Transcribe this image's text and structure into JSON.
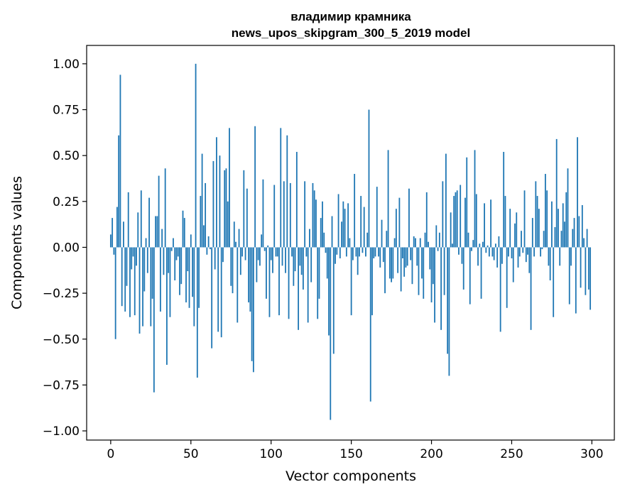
{
  "chart_data": {
    "type": "bar",
    "title_line1": "владимир крамника",
    "title_line2": "news_upos_skipgram_300_5_2019 model",
    "xlabel": "Vector components",
    "ylabel": "Components values",
    "xlim": [
      -15,
      314
    ],
    "ylim": [
      -1.05,
      1.1
    ],
    "xticks": [
      0,
      50,
      100,
      150,
      200,
      250,
      300
    ],
    "yticks": [
      1.0,
      0.75,
      0.5,
      0.25,
      0.0,
      -0.25,
      -0.5,
      -0.75,
      -1.0
    ],
    "ytick_labels": [
      "1.00",
      "0.75",
      "0.50",
      "0.25",
      "0.00",
      "−0.25",
      "−0.50",
      "−0.75",
      "−1.00"
    ],
    "grid": false,
    "color": "#1f77b4",
    "values": [
      0.07,
      0.16,
      -0.04,
      -0.5,
      0.22,
      0.61,
      0.94,
      -0.32,
      0.14,
      -0.35,
      -0.21,
      0.3,
      -0.38,
      -0.12,
      -0.05,
      -0.37,
      -0.1,
      0.19,
      -0.47,
      0.31,
      -0.43,
      -0.24,
      0.05,
      -0.14,
      0.27,
      -0.43,
      -0.28,
      -0.79,
      0.17,
      0.17,
      0.39,
      -0.35,
      0.1,
      -0.15,
      0.43,
      -0.64,
      -0.14,
      -0.38,
      -0.02,
      0.05,
      -0.18,
      -0.07,
      -0.05,
      -0.26,
      -0.2,
      0.2,
      0.16,
      -0.3,
      -0.13,
      -0.33,
      0.07,
      -0.27,
      -0.43,
      1.0,
      -0.71,
      -0.33,
      0.28,
      0.51,
      0.12,
      0.35,
      -0.04,
      0.06,
      -0.01,
      -0.55,
      0.47,
      -0.12,
      0.6,
      -0.46,
      0.5,
      -0.49,
      -0.08,
      0.42,
      0.43,
      0.25,
      0.65,
      -0.21,
      -0.25,
      0.14,
      0.03,
      -0.41,
      0.1,
      -0.15,
      -0.05,
      0.42,
      -0.07,
      0.32,
      -0.3,
      -0.35,
      -0.62,
      -0.68,
      0.66,
      -0.19,
      -0.07,
      -0.1,
      0.07,
      0.37,
      -0.02,
      -0.28,
      0.01,
      -0.38,
      -0.07,
      -0.14,
      0.34,
      -0.05,
      -0.05,
      -0.37,
      0.65,
      -0.1,
      0.36,
      -0.14,
      0.61,
      -0.39,
      0.35,
      -0.05,
      -0.21,
      -0.13,
      0.52,
      -0.45,
      -0.1,
      -0.15,
      -0.23,
      0.36,
      -0.05,
      -0.41,
      0.1,
      -0.19,
      0.35,
      0.31,
      0.26,
      -0.39,
      -0.28,
      0.16,
      0.25,
      0.08,
      -0.03,
      -0.17,
      -0.48,
      -0.94,
      0.17,
      -0.58,
      -0.09,
      -0.04,
      0.29,
      -0.06,
      0.14,
      0.25,
      0.21,
      -0.05,
      0.24,
      0.05,
      -0.37,
      -0.07,
      0.4,
      -0.05,
      -0.15,
      -0.05,
      0.28,
      -0.03,
      0.22,
      -0.05,
      0.08,
      0.75,
      -0.84,
      -0.37,
      -0.06,
      -0.05,
      0.33,
      -0.05,
      -0.11,
      0.15,
      -0.08,
      -0.25,
      0.09,
      0.53,
      -0.17,
      -0.19,
      -0.17,
      0.05,
      0.21,
      -0.14,
      0.27,
      -0.24,
      -0.06,
      -0.16,
      -0.11,
      -0.1,
      0.32,
      -0.07,
      -0.2,
      0.06,
      0.05,
      -0.1,
      -0.26,
      0.05,
      -0.17,
      -0.28,
      0.08,
      0.3,
      0.03,
      -0.12,
      -0.3,
      -0.2,
      -0.41,
      0.12,
      -0.02,
      0.08,
      -0.45,
      0.36,
      -0.26,
      0.51,
      -0.58,
      -0.7,
      0.19,
      0.02,
      0.28,
      0.3,
      0.31,
      -0.04,
      0.34,
      -0.09,
      -0.23,
      0.27,
      0.49,
      0.08,
      -0.31,
      -0.02,
      0.04,
      0.53,
      0.29,
      -0.1,
      0.02,
      -0.28,
      0.03,
      0.24,
      -0.03,
      0.01,
      -0.05,
      0.26,
      -0.05,
      -0.07,
      0.02,
      -0.11,
      0.06,
      -0.46,
      -0.09,
      0.52,
      0.28,
      -0.33,
      -0.05,
      0.21,
      -0.06,
      -0.19,
      0.13,
      0.19,
      -0.11,
      -0.05,
      0.09,
      -0.03,
      0.31,
      -0.08,
      -0.04,
      -0.14,
      -0.45,
      0.16,
      -0.05,
      0.36,
      0.28,
      0.21,
      -0.05,
      -0.01,
      0.09,
      0.4,
      0.31,
      -0.1,
      -0.18,
      0.25,
      -0.38,
      0.11,
      0.59,
      0.21,
      -0.1,
      0.09,
      0.24,
      0.14,
      0.3,
      0.43,
      -0.31,
      -0.1,
      0.1,
      0.16,
      -0.36,
      0.6,
      0.17,
      -0.22,
      0.23,
      0.05,
      -0.26,
      0.1,
      -0.23,
      -0.34
    ]
  }
}
